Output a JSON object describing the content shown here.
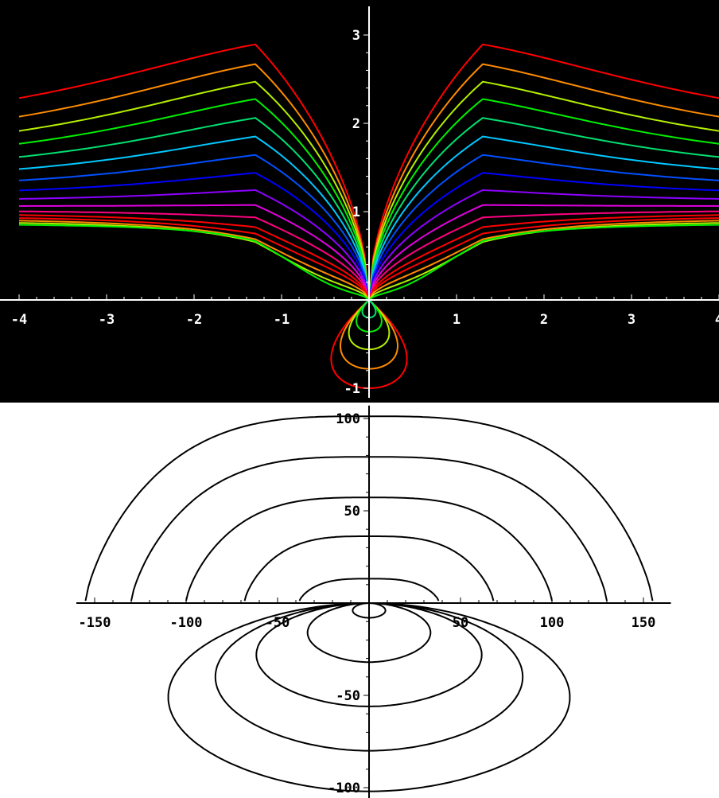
{
  "chart_data": [
    {
      "type": "line",
      "chart_kind": "contour",
      "background": "#000000",
      "axis_color": "#ffffff",
      "grid": false,
      "xlim": [
        -4,
        4
      ],
      "ylim": [
        -1,
        3.1
      ],
      "x_ticks": [
        -4,
        -3,
        -2,
        -1,
        1,
        2,
        3,
        4
      ],
      "x_tick_labels": [
        "-4",
        "-3",
        "-2",
        "-1",
        "1",
        "2",
        "3",
        "4"
      ],
      "y_ticks": [
        -1,
        1,
        2,
        3
      ],
      "y_tick_labels": [
        "-1",
        "1",
        "2",
        "3"
      ],
      "palette": [
        "#ff0000",
        "#ff8c00",
        "#b4f000",
        "#00f000",
        "#00e070",
        "#00c8ff",
        "#0050ff",
        "#0000ff",
        "#8c00ff",
        "#e000e0",
        "#ff0080",
        "#ff0000"
      ],
      "upper_levels": [
        {
          "peak": 3.0,
          "edge": 1.78
        },
        {
          "peak": 2.78,
          "edge": 1.62
        },
        {
          "peak": 2.58,
          "edge": 1.52
        },
        {
          "peak": 2.38,
          "edge": 1.44
        },
        {
          "peak": 2.16,
          "edge": 1.36
        },
        {
          "peak": 1.94,
          "edge": 1.29
        },
        {
          "peak": 1.72,
          "edge": 1.22
        },
        {
          "peak": 1.5,
          "edge": 1.16
        },
        {
          "peak": 1.28,
          "edge": 1.11
        },
        {
          "peak": 1.08,
          "edge": 1.06
        },
        {
          "peak": 0.9,
          "edge": 1.02
        },
        {
          "peak": 0.74,
          "edge": 0.99
        },
        {
          "peak": 0.62,
          "edge": 0.96
        },
        {
          "peak": 0.48,
          "edge": 0.93
        },
        {
          "peak": 0.35,
          "edge": 0.9
        },
        {
          "peak": 0.22,
          "edge": 0.87
        }
      ],
      "lower_levels": [
        {
          "depth": 1.0,
          "halfwidth": 0.45
        },
        {
          "depth": 0.78,
          "halfwidth": 0.34
        },
        {
          "depth": 0.56,
          "halfwidth": 0.24
        },
        {
          "depth": 0.36,
          "halfwidth": 0.15
        },
        {
          "depth": 0.2,
          "halfwidth": 0.08
        }
      ]
    },
    {
      "type": "line",
      "chart_kind": "contour",
      "background": "#ffffff",
      "line_color": "#000000",
      "grid": false,
      "xlim": [
        -160,
        165
      ],
      "ylim": [
        -107,
        107
      ],
      "x_ticks": [
        -150,
        -100,
        -50,
        50,
        100,
        150
      ],
      "x_tick_labels": [
        "-150",
        "-100",
        "-50",
        "50",
        "100",
        "150"
      ],
      "y_ticks": [
        -100,
        -50,
        50,
        100
      ],
      "y_tick_labels": [
        "-100",
        "-50",
        "50",
        "100"
      ],
      "upper_levels": [
        {
          "peak": 100,
          "halfwidth": 155
        },
        {
          "peak": 78,
          "halfwidth": 130
        },
        {
          "peak": 56,
          "halfwidth": 100
        },
        {
          "peak": 35,
          "halfwidth": 68
        },
        {
          "peak": 12,
          "halfwidth": 38
        }
      ],
      "lower_levels": [
        {
          "depth": 102,
          "halfwidth": 98
        },
        {
          "depth": 80,
          "halfwidth": 75
        },
        {
          "depth": 56,
          "halfwidth": 55
        },
        {
          "depth": 32,
          "halfwidth": 30
        },
        {
          "depth": 8,
          "halfwidth": 8
        }
      ]
    }
  ]
}
